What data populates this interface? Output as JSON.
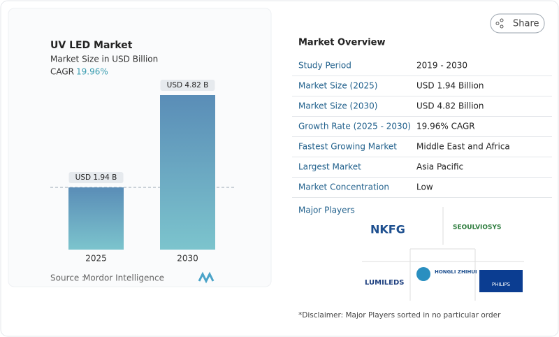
{
  "chart_data": {
    "type": "bar",
    "title": "UV LED Market",
    "subtitle": "Market Size in USD Billion",
    "cagr_label": "CAGR",
    "cagr_value": "19.96%",
    "categories": [
      "2025",
      "2030"
    ],
    "values": [
      1.94,
      4.82
    ],
    "value_labels": [
      "USD 1.94 B",
      "USD 4.82 B"
    ],
    "source_label": "Source :",
    "source": "Mordor Intelligence"
  },
  "share": "Share",
  "overview": {
    "title": "Market Overview",
    "rows": [
      [
        "Study Period",
        "2019 - 2030"
      ],
      [
        "Market Size (2025)",
        "USD 1.94 Billion"
      ],
      [
        "Market Size (2030)",
        "USD 4.82 Billion"
      ],
      [
        "Growth Rate (2025 - 2030)",
        "19.96% CAGR"
      ],
      [
        "Fastest Growing Market",
        "Middle East and Africa"
      ],
      [
        "Largest Market",
        "Asia Pacific"
      ],
      [
        "Market Concentration",
        "Low"
      ]
    ]
  },
  "players": {
    "title": "Major Players",
    "names": [
      "NKFG",
      "SEOULVIOSYS",
      "LUMILEDS",
      "HONGLI ZHIHUI",
      "PHILIPS"
    ]
  },
  "disclaimer": "*Disclaimer: Major Players sorted in no particular order"
}
